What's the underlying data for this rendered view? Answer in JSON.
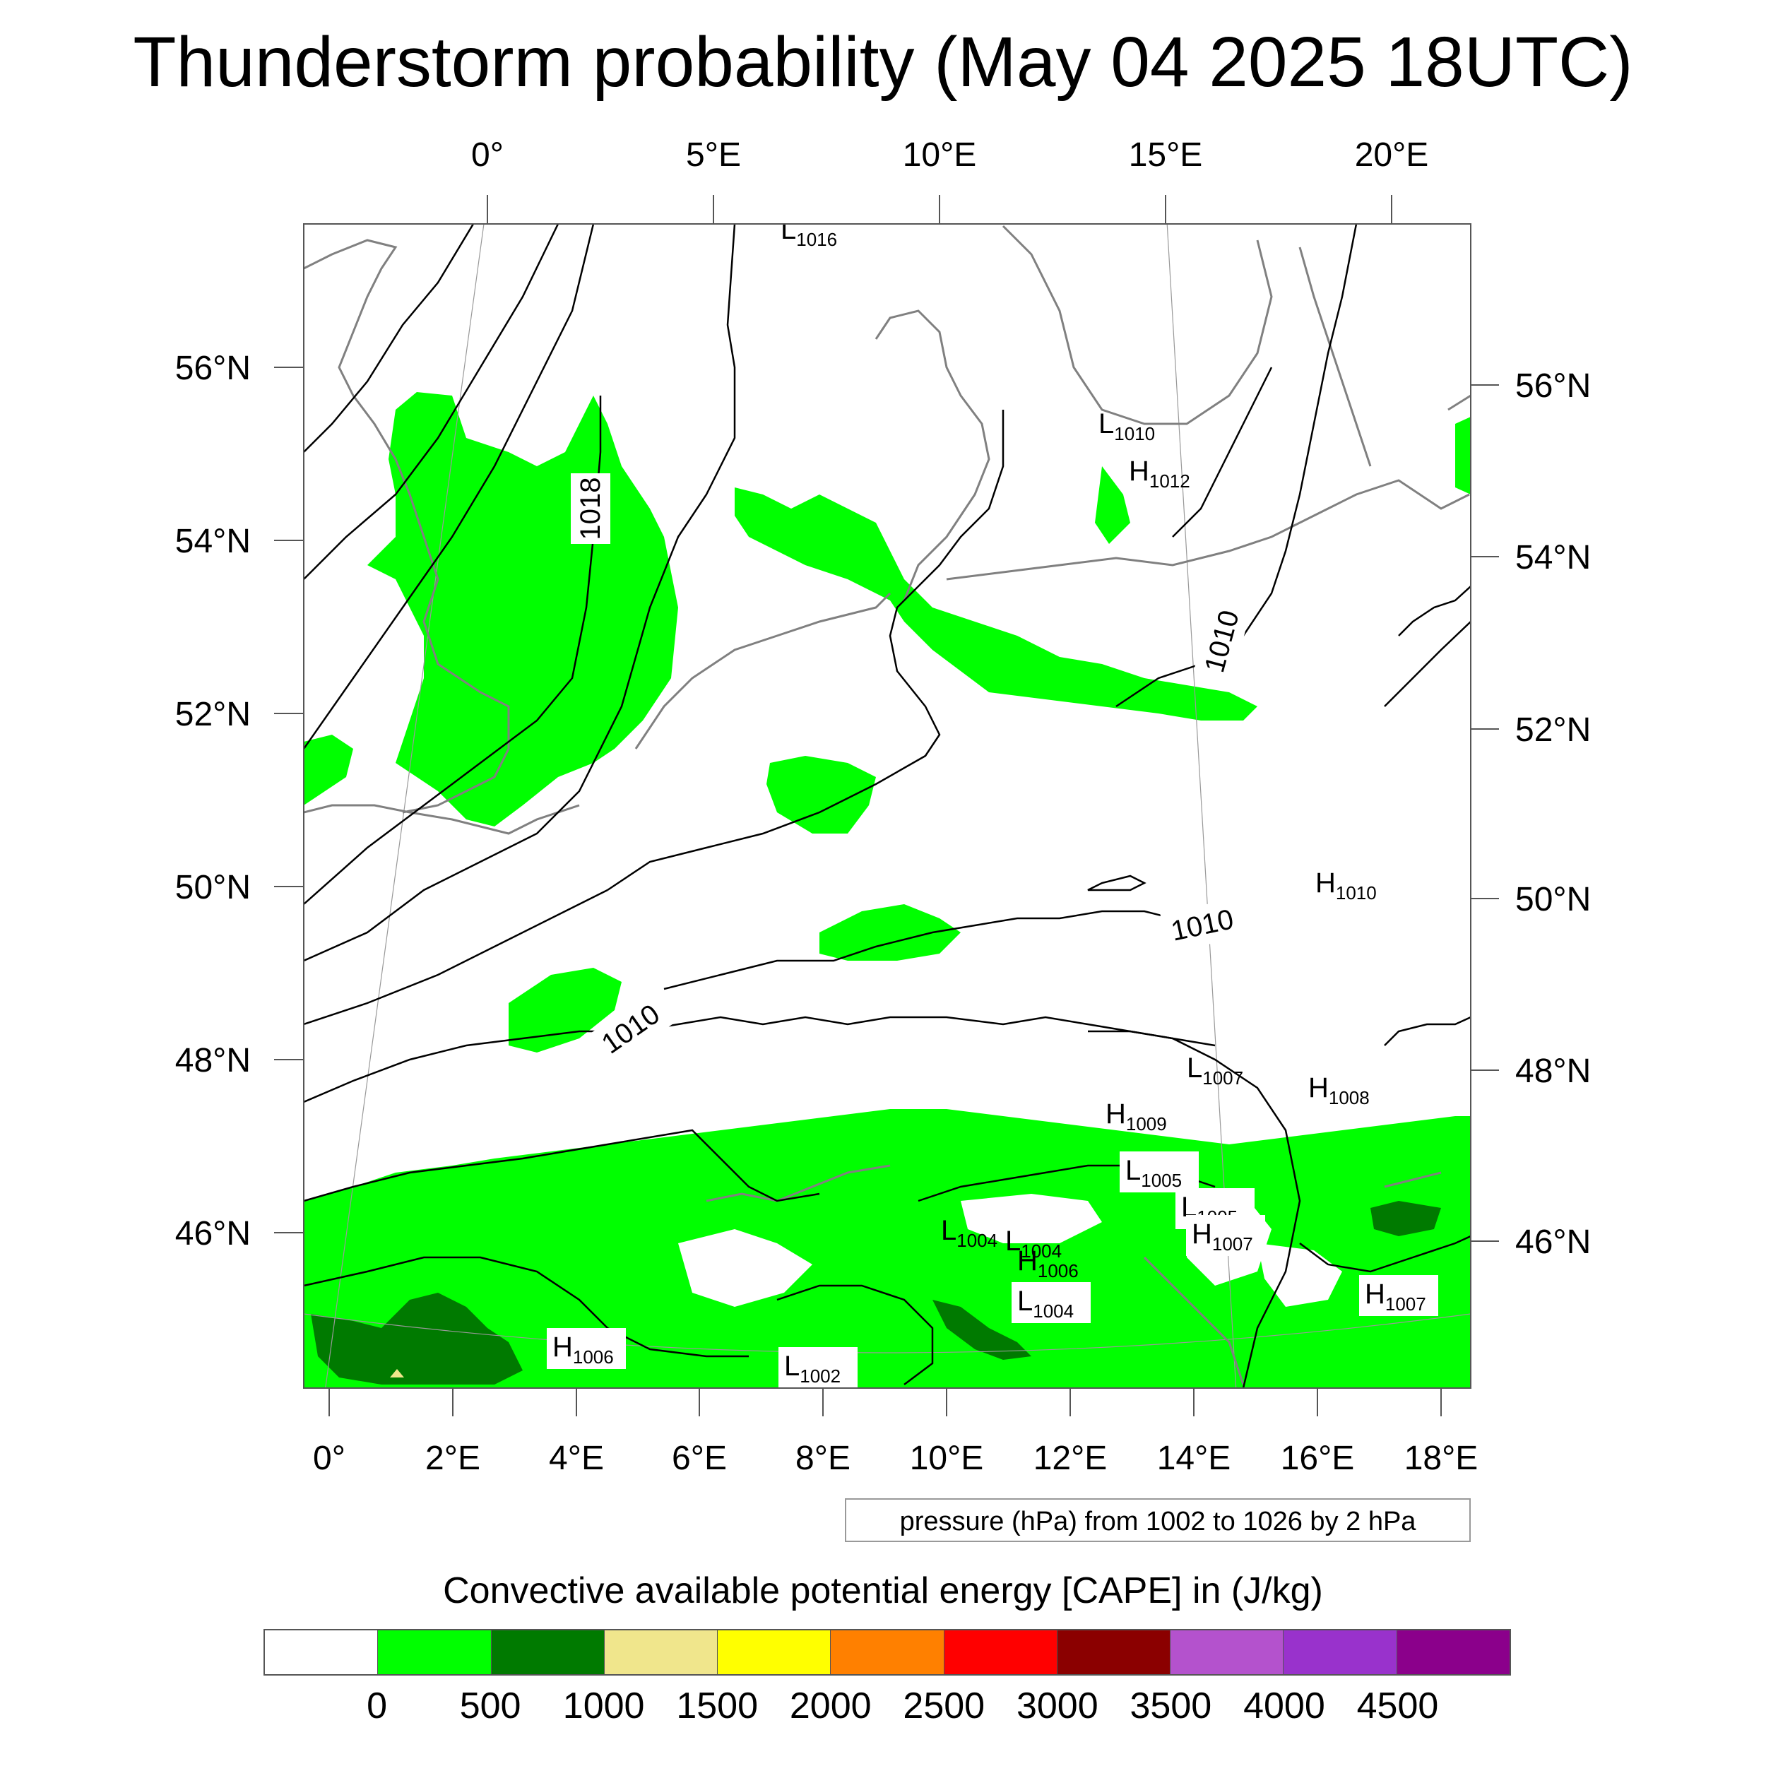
{
  "title": "Thunderstorm probability (May 04 2025 18UTC)",
  "map": {
    "top_lon_ticks": [
      {
        "label": "0°",
        "lon": 0
      },
      {
        "label": "5°E",
        "lon": 5
      },
      {
        "label": "10°E",
        "lon": 10
      },
      {
        "label": "15°E",
        "lon": 15
      },
      {
        "label": "20°E",
        "lon": 20
      }
    ],
    "bottom_lon_ticks": [
      {
        "label": "0°",
        "lon": 0
      },
      {
        "label": "2°E",
        "lon": 2
      },
      {
        "label": "4°E",
        "lon": 4
      },
      {
        "label": "6°E",
        "lon": 6
      },
      {
        "label": "8°E",
        "lon": 8
      },
      {
        "label": "10°E",
        "lon": 10
      },
      {
        "label": "12°E",
        "lon": 12
      },
      {
        "label": "14°E",
        "lon": 14
      },
      {
        "label": "16°E",
        "lon": 16
      },
      {
        "label": "18°E",
        "lon": 18
      }
    ],
    "left_lat_ticks": [
      {
        "label": "56°N",
        "lat": 56
      },
      {
        "label": "54°N",
        "lat": 54
      },
      {
        "label": "52°N",
        "lat": 52
      },
      {
        "label": "50°N",
        "lat": 50
      },
      {
        "label": "48°N",
        "lat": 48
      },
      {
        "label": "46°N",
        "lat": 46
      }
    ],
    "right_lat_ticks": [
      {
        "label": "56°N",
        "lat": 56
      },
      {
        "label": "54°N",
        "lat": 54
      },
      {
        "label": "52°N",
        "lat": 52
      },
      {
        "label": "50°N",
        "lat": 50
      },
      {
        "label": "48°N",
        "lat": 48
      },
      {
        "label": "46°N",
        "lat": 46
      }
    ],
    "isobar_labels": [
      "1018",
      "1010",
      "1010",
      "1010"
    ],
    "pressure_centers": [
      {
        "type": "L",
        "value": "1016"
      },
      {
        "type": "L",
        "value": "1010"
      },
      {
        "type": "H",
        "value": "1012"
      },
      {
        "type": "H",
        "value": "1010"
      },
      {
        "type": "L",
        "value": "1007"
      },
      {
        "type": "H",
        "value": "1008"
      },
      {
        "type": "H",
        "value": "1009"
      },
      {
        "type": "L",
        "value": "1005"
      },
      {
        "type": "L",
        "value": "1005"
      },
      {
        "type": "H",
        "value": "1007"
      },
      {
        "type": "L",
        "value": "1004"
      },
      {
        "type": "L",
        "value": "1004"
      },
      {
        "type": "H",
        "value": "1006"
      },
      {
        "type": "L",
        "value": "1004"
      },
      {
        "type": "H",
        "value": "1007"
      },
      {
        "type": "H",
        "value": "1006"
      },
      {
        "type": "L",
        "value": "1002"
      }
    ]
  },
  "legend_note": "pressure (hPa) from 1002 to 1026 by 2 hPa",
  "colorbar": {
    "title": "Convective available potential energy [CAPE] in (J/kg)",
    "colors": [
      "#ffffff",
      "#00ff00",
      "#007a00",
      "#f0e68c",
      "#ffff00",
      "#ff8000",
      "#ff0000",
      "#8b0000",
      "#b452cd",
      "#9932cc",
      "#8b008b"
    ],
    "labels": [
      "0",
      "500",
      "1000",
      "1500",
      "2000",
      "2500",
      "3000",
      "3500",
      "4000",
      "4500"
    ]
  },
  "colors": {
    "cape_low": "#00ff00",
    "cape_mid": "#007a00",
    "cape_high": "#f0e68c",
    "coastline": "#808080",
    "isobar": "#000000"
  }
}
